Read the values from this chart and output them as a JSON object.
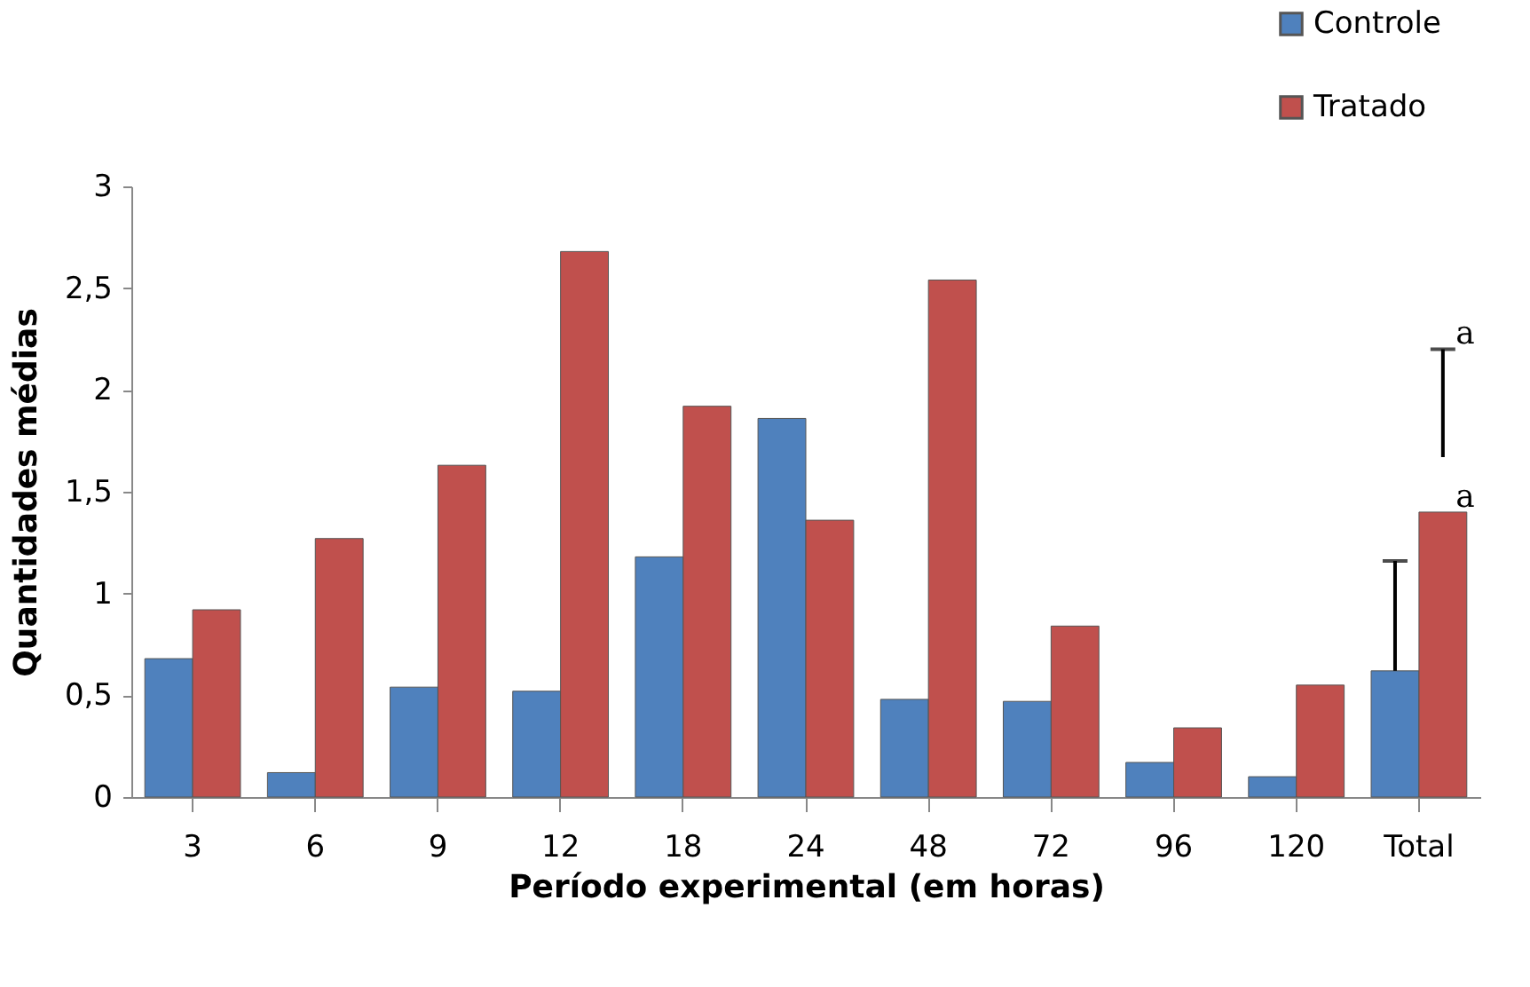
{
  "chart_data": {
    "type": "bar",
    "xlabel": "Período experimental (em horas)",
    "ylabel": "Quantidades médias",
    "categories": [
      "3",
      "6",
      "9",
      "12",
      "18",
      "24",
      "48",
      "72",
      "96",
      "120",
      "Total"
    ],
    "series": [
      {
        "name": "Controle",
        "color": "#4f81bd",
        "values": [
          0.68,
          0.12,
          0.54,
          0.52,
          1.18,
          1.86,
          0.48,
          0.47,
          0.17,
          0.1,
          0.62
        ],
        "errors": [
          null,
          null,
          null,
          null,
          null,
          null,
          null,
          null,
          null,
          null,
          [
            0.62,
            1.16
          ]
        ]
      },
      {
        "name": "Tratado",
        "color": "#c0504d",
        "values": [
          0.92,
          1.27,
          1.63,
          2.68,
          1.92,
          1.36,
          2.54,
          0.84,
          0.34,
          0.55,
          1.4
        ],
        "errors": [
          null,
          null,
          null,
          null,
          null,
          null,
          null,
          null,
          null,
          null,
          [
            1.67,
            2.2
          ]
        ]
      }
    ],
    "ylim": [
      0,
      3
    ],
    "yticks": [
      0,
      {
        "value": 0.5,
        "label": "0,5"
      },
      1,
      {
        "value": 1.5,
        "label": "1,5"
      },
      2,
      {
        "value": 2.5,
        "label": "2,5"
      },
      3
    ],
    "annotations": [
      {
        "text": "a",
        "x": "Total",
        "y": 1.4
      },
      "a"
    ],
    "legend": "top right",
    "grid": false
  }
}
